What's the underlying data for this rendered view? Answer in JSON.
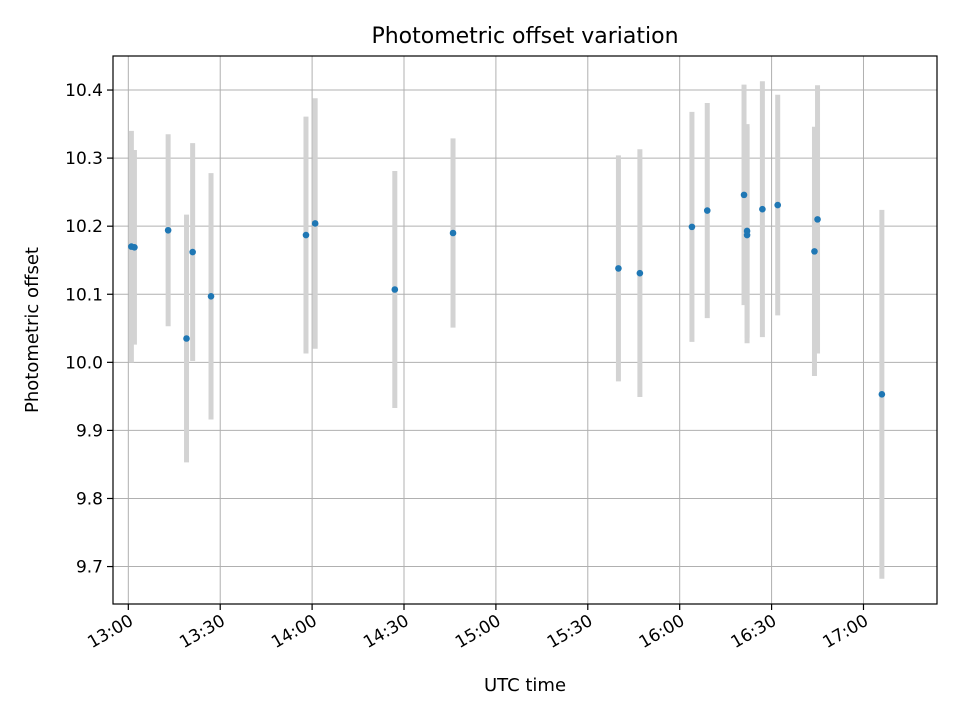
{
  "chart_data": {
    "type": "scatter",
    "title": "Photometric offset variation",
    "xlabel": "UTC time",
    "ylabel": "Photometric offset",
    "xlim": [
      "12:55",
      "17:24"
    ],
    "ylim": [
      9.645,
      10.45
    ],
    "x_ticks": [
      "13:00",
      "13:30",
      "14:00",
      "14:30",
      "15:00",
      "15:30",
      "16:00",
      "16:30",
      "17:00"
    ],
    "y_ticks": [
      9.7,
      9.8,
      9.9,
      10.0,
      10.1,
      10.2,
      10.3,
      10.4
    ],
    "y_tick_labels": [
      "9.7",
      "9.8",
      "9.9",
      "10.0",
      "10.1",
      "10.2",
      "10.3",
      "10.4"
    ],
    "grid": true,
    "marker_color": "#1f77b4",
    "errorbar_color": "#d3d3d3",
    "points": [
      {
        "time": "13:01",
        "y": 10.17,
        "err": 0.17
      },
      {
        "time": "13:02",
        "y": 10.169,
        "err": 0.143
      },
      {
        "time": "13:13",
        "y": 10.194,
        "err": 0.141
      },
      {
        "time": "13:19",
        "y": 10.035,
        "err": 0.182
      },
      {
        "time": "13:21",
        "y": 10.162,
        "err": 0.16
      },
      {
        "time": "13:27",
        "y": 10.097,
        "err": 0.181
      },
      {
        "time": "13:58",
        "y": 10.187,
        "err": 0.174
      },
      {
        "time": "14:01",
        "y": 10.204,
        "err": 0.184
      },
      {
        "time": "14:27",
        "y": 10.107,
        "err": 0.174
      },
      {
        "time": "14:46",
        "y": 10.19,
        "err": 0.139
      },
      {
        "time": "15:40",
        "y": 10.138,
        "err": 0.166
      },
      {
        "time": "15:47",
        "y": 10.131,
        "err": 0.182
      },
      {
        "time": "16:04",
        "y": 10.199,
        "err": 0.169
      },
      {
        "time": "16:09",
        "y": 10.223,
        "err": 0.158
      },
      {
        "time": "16:21",
        "y": 10.246,
        "err": 0.162
      },
      {
        "time": "16:22",
        "y": 10.193,
        "err": 0.157
      },
      {
        "time": "16:22",
        "y": 10.187,
        "err": 0.159
      },
      {
        "time": "16:27",
        "y": 10.225,
        "err": 0.188
      },
      {
        "time": "16:32",
        "y": 10.231,
        "err": 0.162
      },
      {
        "time": "16:44",
        "y": 10.163,
        "err": 0.183
      },
      {
        "time": "16:45",
        "y": 10.21,
        "err": 0.197
      },
      {
        "time": "17:06",
        "y": 9.953,
        "err": 0.271
      }
    ]
  }
}
